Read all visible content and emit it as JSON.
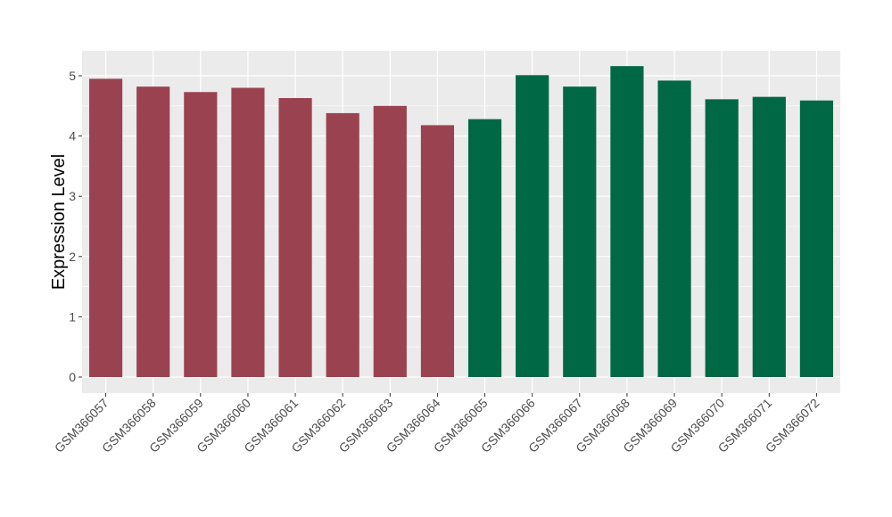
{
  "chart_data": {
    "type": "bar",
    "title": "",
    "xlabel": "",
    "ylabel": "Expression Level",
    "ylim": [
      0,
      5
    ],
    "yticks": [
      0,
      1,
      2,
      3,
      4,
      5
    ],
    "grid": true,
    "legend": "none",
    "panel_color": "#ebebeb",
    "gridline_color": "#ffffff",
    "categories": [
      "GSM366057",
      "GSM366058",
      "GSM366059",
      "GSM366060",
      "GSM366061",
      "GSM366062",
      "GSM366063",
      "GSM366064",
      "GSM366065",
      "GSM366066",
      "GSM366067",
      "GSM366068",
      "GSM366069",
      "GSM366070",
      "GSM366071",
      "GSM366072"
    ],
    "values": [
      4.95,
      4.82,
      4.73,
      4.8,
      4.63,
      4.38,
      4.5,
      4.18,
      4.28,
      5.01,
      4.82,
      5.16,
      4.92,
      4.61,
      4.65,
      4.59
    ],
    "bar_colors": [
      "#9b4250",
      "#9b4250",
      "#9b4250",
      "#9b4250",
      "#9b4250",
      "#9b4250",
      "#9b4250",
      "#9b4250",
      "#006844",
      "#006844",
      "#006844",
      "#006844",
      "#006844",
      "#006844",
      "#006844",
      "#006844"
    ]
  }
}
